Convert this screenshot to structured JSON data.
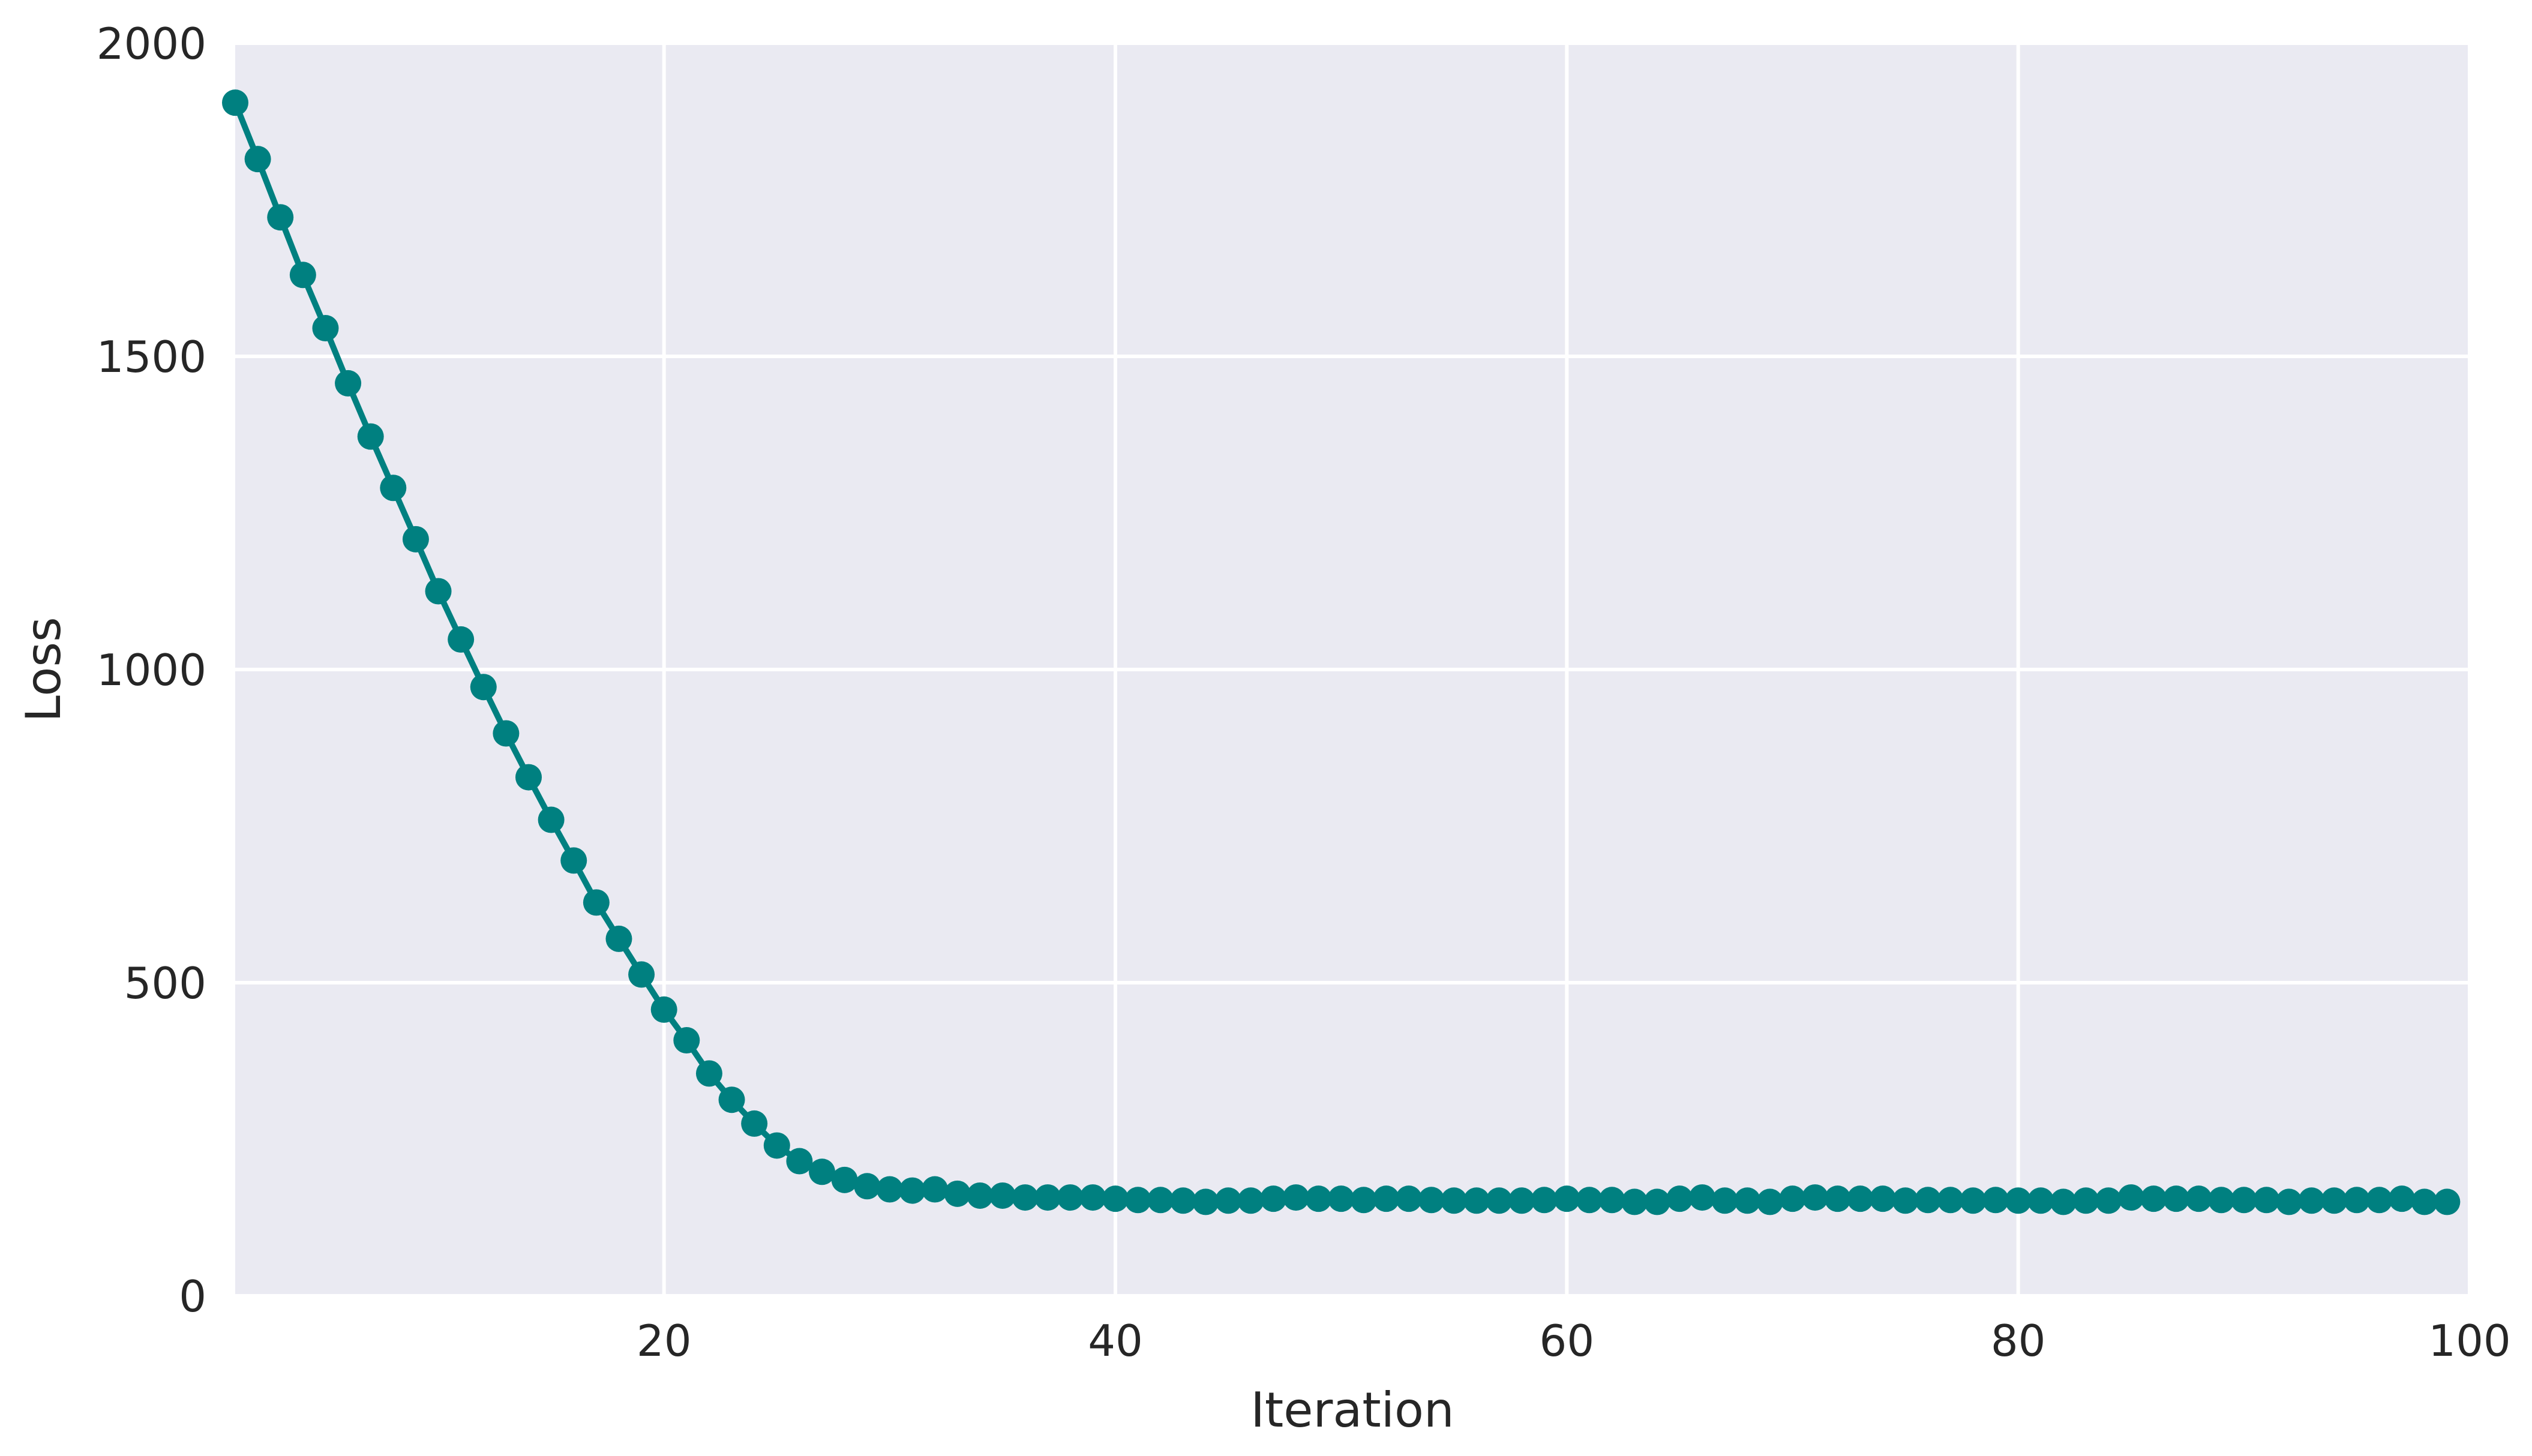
{
  "chart_data": {
    "type": "line",
    "title": "",
    "xlabel": "Iteration",
    "ylabel": "Loss",
    "xlim": [
      1,
      100
    ],
    "ylim": [
      0,
      2000
    ],
    "xticks": [
      20,
      40,
      60,
      80,
      100
    ],
    "yticks": [
      0,
      500,
      1000,
      1500,
      2000
    ],
    "grid": true,
    "legend": "none",
    "colors": {
      "background": "#eaeaf2",
      "grid": "#ffffff",
      "series": "#008080",
      "text": "#262626"
    },
    "series": [
      {
        "marker": "circle",
        "x": [
          1,
          2,
          3,
          4,
          5,
          6,
          7,
          8,
          9,
          10,
          11,
          12,
          13,
          14,
          15,
          16,
          17,
          18,
          19,
          20,
          21,
          22,
          23,
          24,
          25,
          26,
          27,
          28,
          29,
          30,
          31,
          32,
          33,
          34,
          35,
          36,
          37,
          38,
          39,
          40,
          41,
          42,
          43,
          44,
          45,
          46,
          47,
          48,
          49,
          50,
          51,
          52,
          53,
          54,
          55,
          56,
          57,
          58,
          59,
          60,
          61,
          62,
          63,
          64,
          65,
          66,
          67,
          68,
          69,
          70,
          71,
          72,
          73,
          74,
          75,
          76,
          77,
          78,
          79,
          80,
          81,
          82,
          83,
          84,
          85,
          86,
          87,
          88,
          89,
          90,
          91,
          92,
          93,
          94,
          95,
          96,
          97,
          98,
          99
        ],
        "values": [
          1905,
          1815,
          1722,
          1630,
          1545,
          1457,
          1372,
          1290,
          1208,
          1125,
          1048,
          972,
          898,
          828,
          760,
          695,
          628,
          570,
          513,
          457,
          408,
          355,
          313,
          275,
          240,
          215,
          198,
          185,
          175,
          170,
          168,
          170,
          163,
          160,
          160,
          157,
          157,
          157,
          157,
          155,
          153,
          153,
          152,
          150,
          152,
          152,
          155,
          157,
          155,
          155,
          153,
          155,
          155,
          153,
          152,
          152,
          152,
          152,
          153,
          155,
          153,
          153,
          150,
          150,
          155,
          157,
          152,
          152,
          150,
          155,
          157,
          155,
          155,
          155,
          152,
          153,
          153,
          152,
          153,
          152,
          152,
          150,
          152,
          152,
          157,
          155,
          155,
          155,
          153,
          153,
          153,
          150,
          152,
          152,
          153,
          153,
          155,
          150,
          150
        ]
      }
    ]
  }
}
